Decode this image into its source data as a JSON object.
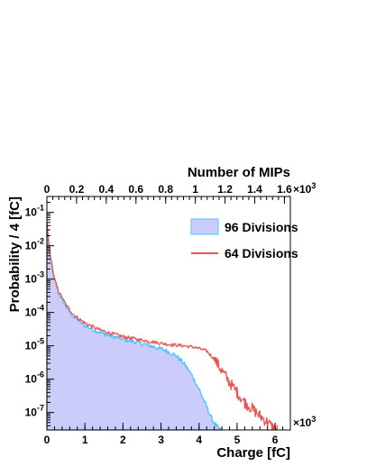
{
  "chart_data": {
    "type": "area",
    "x_axis": {
      "label": "Charge [fC]",
      "multiplier": "×10",
      "multiplier_exp": "3",
      "range": [
        0,
        6.4
      ],
      "ticks": [
        "0",
        "1",
        "2",
        "3",
        "4",
        "5",
        "6"
      ],
      "tick_values": [
        0,
        1,
        2,
        3,
        4,
        5,
        6
      ]
    },
    "x_axis_top": {
      "label": "Number of MIPs",
      "multiplier": "×10",
      "multiplier_exp": "3",
      "range": [
        0,
        1.64
      ],
      "ticks": [
        "0",
        "0.2",
        "0.4",
        "0.6",
        "0.8",
        "1",
        "1.2",
        "1.4",
        "1.6"
      ],
      "tick_values": [
        0,
        0.2,
        0.4,
        0.6,
        0.8,
        1.0,
        1.2,
        1.4,
        1.6
      ]
    },
    "y_axis": {
      "label": "Probability / 4 [fC]",
      "scale": "log",
      "range": [
        3e-08,
        0.3
      ],
      "tick_base": "10",
      "tick_exps": [
        "-7",
        "-6",
        "-5",
        "-4",
        "-3",
        "-2",
        "-1"
      ],
      "tick_values": [
        1e-07,
        1e-06,
        1e-05,
        0.0001,
        0.001,
        0.01,
        0.1
      ]
    },
    "legend_position": "top-right",
    "grid": false,
    "series": [
      {
        "name": "96 Divisions",
        "style": "filled",
        "color": "#4fc3ff",
        "fill_color": "#ccccfa",
        "x": [
          0,
          0.05,
          0.1,
          0.2,
          0.3,
          0.5,
          0.7,
          1.0,
          1.3,
          1.6,
          2.0,
          2.4,
          2.8,
          3.1,
          3.4,
          3.6,
          3.8,
          4.0,
          4.2,
          4.35,
          4.45,
          4.55,
          4.6
        ],
        "y": [
          0.05,
          0.012,
          0.004,
          0.001,
          0.0004,
          0.00015,
          7.5e-05,
          4e-05,
          2.8e-05,
          2.1e-05,
          1.6e-05,
          1.25e-05,
          9.5e-06,
          7.5e-06,
          5e-06,
          3e-06,
          1.4e-06,
          5e-07,
          1.5e-07,
          6e-08,
          4e-08,
          3e-08,
          3e-08
        ]
      },
      {
        "name": "64 Divisions",
        "style": "line",
        "color": "#f05050",
        "x": [
          0,
          0.05,
          0.1,
          0.2,
          0.3,
          0.5,
          0.7,
          1.0,
          1.3,
          1.6,
          2.0,
          2.4,
          2.8,
          3.2,
          3.6,
          3.9,
          4.2,
          4.4,
          4.6,
          4.8,
          5.0,
          5.2,
          5.4,
          5.6,
          5.8,
          5.95,
          6.05
        ],
        "y": [
          0.05,
          0.012,
          0.004,
          0.001,
          0.00045,
          0.00017,
          8.5e-05,
          4.8e-05,
          3.3e-05,
          2.5e-05,
          1.9e-05,
          1.55e-05,
          1.3e-05,
          1.1e-05,
          1e-05,
          9e-06,
          7e-06,
          4e-06,
          1.8e-06,
          8e-07,
          4e-07,
          2e-07,
          1.3e-07,
          8e-08,
          5e-08,
          3.5e-08,
          3e-08
        ]
      }
    ]
  }
}
